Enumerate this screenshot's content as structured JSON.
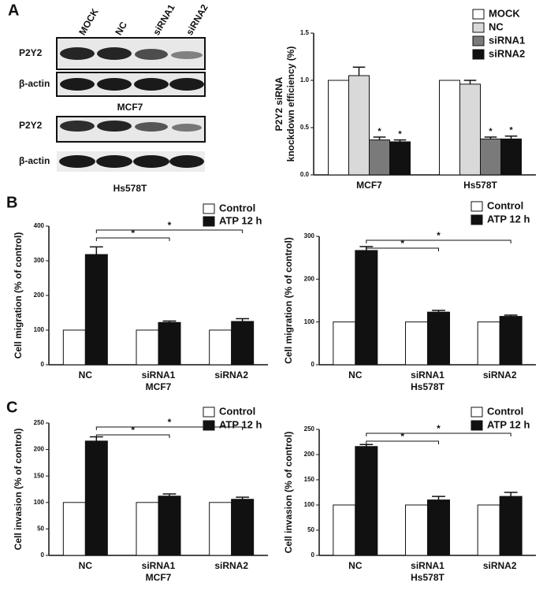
{
  "panel_labels": [
    "A",
    "B",
    "C"
  ],
  "blot": {
    "lanes": [
      "MOCK",
      "NC",
      "siRNA1",
      "siRNA2"
    ],
    "row_labels": [
      "P2Y2",
      "β-actin",
      "P2Y2",
      "β-actin"
    ],
    "cell_lines": [
      "MCF7",
      "Hs578T"
    ]
  },
  "chart_data": [
    {
      "type": "bar",
      "ylabel": [
        "P2Y2 siRNA",
        "knockdown efficiency (%)"
      ],
      "categories": [
        "MCF7",
        "Hs578T"
      ],
      "ylim": [
        0,
        1.5
      ],
      "yticks": [
        {
          "value": 0,
          "label": "0.0"
        },
        0.5,
        {
          "value": 1,
          "label": "1.0"
        },
        1.5
      ],
      "series": [
        {
          "name": "MOCK",
          "color": "#ffffff",
          "values": [
            1.0,
            1.0
          ]
        },
        {
          "name": "NC",
          "color": "#d9d9d9",
          "values": [
            1.05,
            0.96
          ],
          "errors": [
            0.09,
            0.04
          ]
        },
        {
          "name": "siRNA1",
          "color": "#7a7a7a",
          "values": [
            0.37,
            0.38
          ],
          "errors": [
            0.03,
            0.02
          ],
          "marks": [
            "*",
            "*"
          ]
        },
        {
          "name": "siRNA2",
          "color": "#111111",
          "values": [
            0.35,
            0.38
          ],
          "errors": [
            0.02,
            0.03
          ],
          "marks": [
            "*",
            "*"
          ]
        }
      ]
    },
    {
      "type": "bar",
      "ylabel": "Cell migration (% of control)",
      "xlabel": "MCF7",
      "categories": [
        "NC",
        "siRNA1",
        "siRNA2"
      ],
      "ylim": [
        0,
        400
      ],
      "yticks": [
        0,
        100,
        200,
        300,
        400
      ],
      "series": [
        {
          "name": "Control",
          "color": "#ffffff",
          "values": [
            100,
            100,
            100
          ]
        },
        {
          "name": "ATP 12 h",
          "color": "#111111",
          "values": [
            318,
            122,
            125
          ],
          "errors": [
            22,
            4,
            8
          ]
        }
      ],
      "comparisons": [
        {
          "from": 0,
          "to": 1,
          "label": "*"
        },
        {
          "from": 0,
          "to": 2,
          "label": "*"
        }
      ]
    },
    {
      "type": "bar",
      "ylabel": "Cell migration (% of control)",
      "xlabel": "Hs578T",
      "categories": [
        "NC",
        "siRNA1",
        "siRNA2"
      ],
      "ylim": [
        0,
        300
      ],
      "yticks": [
        0,
        100,
        200,
        300
      ],
      "series": [
        {
          "name": "Control",
          "color": "#ffffff",
          "values": [
            100,
            100,
            100
          ]
        },
        {
          "name": "ATP 12 h",
          "color": "#111111",
          "values": [
            267,
            123,
            113
          ],
          "errors": [
            9,
            4,
            3
          ]
        }
      ],
      "comparisons": [
        {
          "from": 0,
          "to": 1,
          "label": "*"
        },
        {
          "from": 0,
          "to": 2,
          "label": "*"
        }
      ]
    },
    {
      "type": "bar",
      "ylabel": "Cell invasion (% of control)",
      "xlabel": "MCF7",
      "categories": [
        "NC",
        "siRNA1",
        "siRNA2"
      ],
      "ylim": [
        0,
        250
      ],
      "yticks": [
        0,
        50,
        100,
        150,
        200,
        250
      ],
      "series": [
        {
          "name": "Control",
          "color": "#ffffff",
          "values": [
            100,
            100,
            100
          ]
        },
        {
          "name": "ATP 12 h",
          "color": "#111111",
          "values": [
            216,
            112,
            106
          ],
          "errors": [
            8,
            4,
            4
          ]
        }
      ],
      "comparisons": [
        {
          "from": 0,
          "to": 1,
          "label": "*"
        },
        {
          "from": 0,
          "to": 2,
          "label": "*"
        }
      ]
    },
    {
      "type": "bar",
      "ylabel": "Cell invasion (% of control)",
      "xlabel": "Hs578T",
      "categories": [
        "NC",
        "siRNA1",
        "siRNA2"
      ],
      "ylim": [
        0,
        250
      ],
      "yticks": [
        0,
        50,
        100,
        150,
        200,
        250
      ],
      "series": [
        {
          "name": "Control",
          "color": "#ffffff",
          "values": [
            100,
            100,
            100
          ]
        },
        {
          "name": "ATP 12 h",
          "color": "#111111",
          "values": [
            216,
            110,
            117
          ],
          "errors": [
            4,
            7,
            8
          ]
        }
      ],
      "comparisons": [
        {
          "from": 0,
          "to": 1,
          "label": "*"
        },
        {
          "from": 0,
          "to": 2,
          "label": "*"
        }
      ]
    }
  ]
}
